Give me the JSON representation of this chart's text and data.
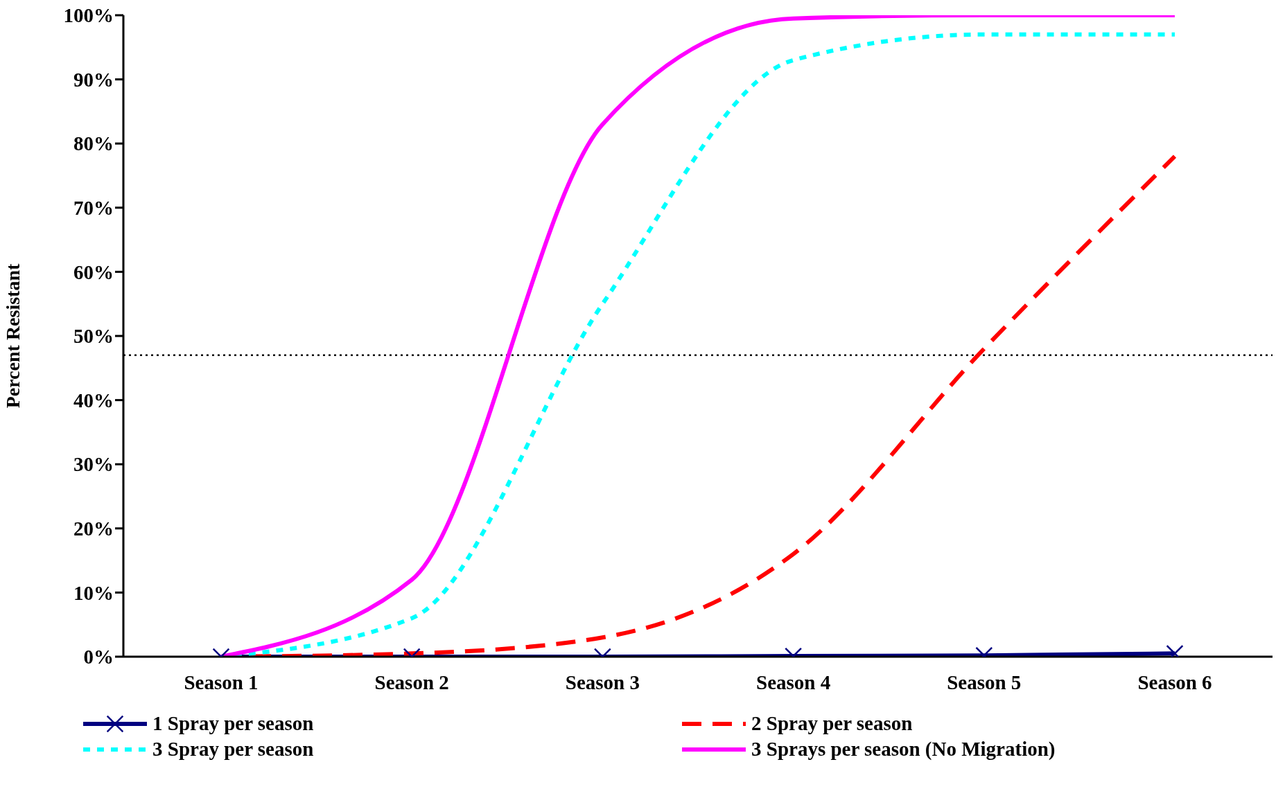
{
  "chart_data": {
    "type": "line",
    "ylabel": "Percent Resistant",
    "categories": [
      "Season 1",
      "Season 2",
      "Season 3",
      "Season 4",
      "Season 5",
      "Season 6"
    ],
    "series": [
      {
        "name": "1 Spray per season",
        "color": "#000080",
        "values": [
          0,
          0,
          0,
          0.1,
          0.2,
          0.5
        ],
        "marker": "cross",
        "line_style": "solid"
      },
      {
        "name": "2 Spray per season",
        "color": "#ff0000",
        "values": [
          0,
          0.5,
          3,
          16,
          48,
          78
        ],
        "marker": "none",
        "line_style": "dashed"
      },
      {
        "name": "3 Spray per season",
        "color": "#00ffff",
        "values": [
          0,
          6,
          55,
          93,
          97,
          97
        ],
        "marker": "none",
        "line_style": "dotted"
      },
      {
        "name": "3 Sprays per season (No Migration)",
        "color": "#ff00ff",
        "values": [
          0,
          12,
          83,
          99.5,
          100,
          100
        ],
        "marker": "none",
        "line_style": "solid"
      }
    ],
    "ylim": [
      0,
      100
    ],
    "yticks": [
      {
        "value": 0,
        "label": "0%"
      },
      {
        "value": 10,
        "label": "10%"
      },
      {
        "value": 20,
        "label": "20%"
      },
      {
        "value": 30,
        "label": "30%"
      },
      {
        "value": 40,
        "label": "40%"
      },
      {
        "value": 50,
        "label": "50%"
      },
      {
        "value": 60,
        "label": "60%"
      },
      {
        "value": 70,
        "label": "70%"
      },
      {
        "value": 80,
        "label": "80%"
      },
      {
        "value": 90,
        "label": "90%"
      },
      {
        "value": 100,
        "label": "100%"
      }
    ],
    "ref_lines": [
      {
        "axis": "y",
        "value": 47,
        "color": "#000000",
        "line_style": "dotted"
      }
    ],
    "grid": false,
    "legend": "bottom"
  }
}
